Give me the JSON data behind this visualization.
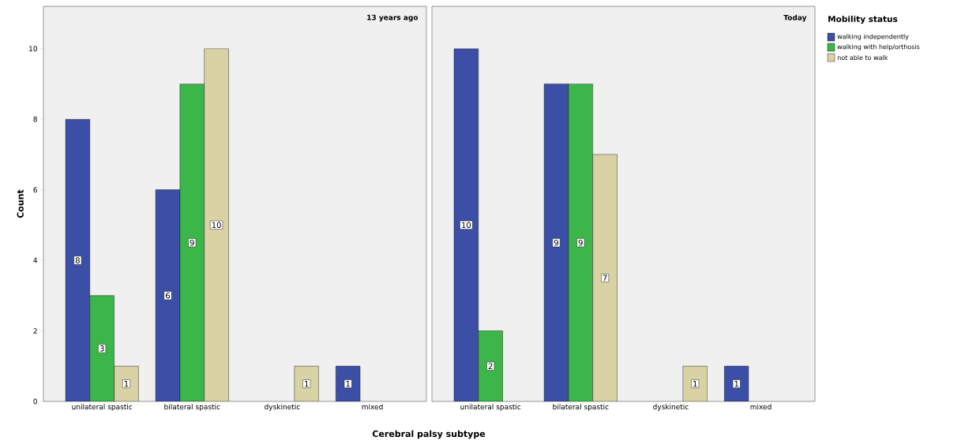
{
  "chart_data": [
    {
      "type": "bar",
      "title": "13 years ago",
      "xlabel": "Cerebral palsy subtype",
      "ylabel": "Count",
      "categories": [
        "unilateral spastic",
        "bilateral spastic",
        "dyskinetic",
        "mixed"
      ],
      "series": [
        {
          "color": "#3c4fa6",
          "values": [
            8,
            6,
            0,
            1
          ],
          "value_labels": [
            "8",
            "6",
            null,
            "1"
          ]
        },
        {
          "color": "#3cb64a",
          "values": [
            3,
            9,
            0,
            0
          ],
          "value_labels": [
            "3",
            "9",
            null,
            null
          ]
        },
        {
          "color": "#d8d2a4",
          "values": [
            1,
            10,
            1,
            0
          ],
          "value_labels": [
            "1",
            "10",
            "1",
            null
          ]
        }
      ],
      "ylim": [
        0,
        11.2
      ],
      "yticks": [
        0,
        2,
        4,
        6,
        8,
        10
      ]
    },
    {
      "type": "bar",
      "title": "Today",
      "legend_title": "Mobility status",
      "legend": "right",
      "tick_labels": "x",
      "categories": [
        "unilateral spastic",
        "bilateral spastic",
        "dyskinetic",
        "mixed"
      ],
      "series": [
        {
          "name": "walking independently",
          "color": "#3c4fa6",
          "values": [
            10,
            9,
            0,
            1
          ],
          "value_labels": [
            "10",
            "9",
            null,
            "1"
          ]
        },
        {
          "name": "walking with help/orthosis",
          "color": "#3cb64a",
          "values": [
            2,
            9,
            0,
            0
          ],
          "value_labels": [
            "2",
            "9",
            null,
            null
          ]
        },
        {
          "name": "not able to walk",
          "color": "#d8d2a4",
          "values": [
            0,
            7,
            1,
            0
          ],
          "value_labels": [
            null,
            "7",
            "1",
            null
          ]
        }
      ],
      "ylim": [
        0,
        11.2
      ],
      "yticks": [
        0,
        2,
        4,
        6,
        8,
        10
      ]
    }
  ]
}
